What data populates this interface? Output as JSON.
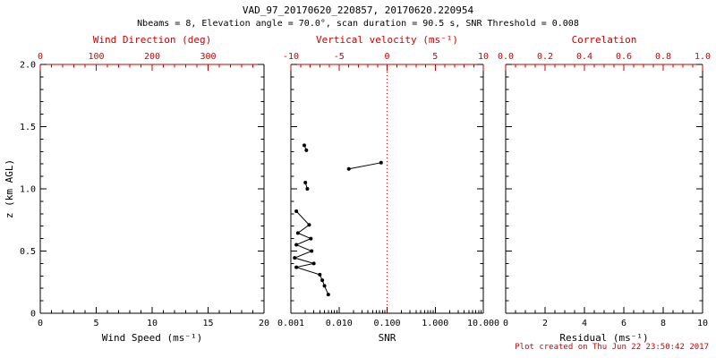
{
  "header": {
    "title": "VAD_97_20170620_220857, 20170620.220954",
    "subtitle": "Nbeams = 8, Elevation angle = 70.0°, scan duration = 90.5 s, SNR Threshold = 0.008"
  },
  "footer": {
    "created": "Plot created on Thu Jun 22 23:50:42 2017"
  },
  "colors": {
    "axis_black": "#000000",
    "accent_red": "#cc0000",
    "data_black": "#000000"
  },
  "chart_data": [
    {
      "type": "scatter",
      "panel": "wind-speed",
      "x_bottom": {
        "label": "Wind Speed (ms⁻¹)",
        "scale": "linear",
        "range": [
          0,
          20
        ],
        "minor_step": 1,
        "ticks": [
          [
            0,
            "0"
          ],
          [
            5,
            "5"
          ],
          [
            10,
            "10"
          ],
          [
            15,
            "15"
          ],
          [
            20,
            "20"
          ]
        ]
      },
      "x_top": {
        "label": "Wind Direction (deg)",
        "scale": "linear",
        "range": [
          0,
          400
        ],
        "minor_step": 20,
        "ticks": [
          [
            0,
            "0"
          ],
          [
            100,
            "100"
          ],
          [
            200,
            "200"
          ],
          [
            300,
            "300"
          ]
        ]
      },
      "y": {
        "label": "z (km AGL)",
        "range": [
          0,
          2
        ],
        "minor_step": 0.1,
        "show_labels": true,
        "ticks": [
          [
            0,
            "0"
          ],
          [
            0.5,
            "0.5"
          ],
          [
            1,
            "1.0"
          ],
          [
            1.5,
            "1.5"
          ],
          [
            2,
            "2.0"
          ]
        ]
      },
      "series": []
    },
    {
      "type": "scatter-line",
      "panel": "snr",
      "x_bottom": {
        "label": "SNR",
        "scale": "log",
        "range": [
          0.001,
          10
        ],
        "ticks": [
          [
            0.001,
            "0.001"
          ],
          [
            0.01,
            "0.010"
          ],
          [
            0.1,
            "0.100"
          ],
          [
            1,
            "1.000"
          ],
          [
            10,
            "10.000"
          ]
        ]
      },
      "x_top": {
        "label": "Vertical velocity (ms⁻¹)",
        "scale": "linear",
        "range": [
          -10,
          10
        ],
        "minor_step": 1,
        "ticks": [
          [
            -10,
            "-10"
          ],
          [
            -5,
            "-5"
          ],
          [
            0,
            "0"
          ],
          [
            5,
            "5"
          ],
          [
            10,
            "10"
          ]
        ]
      },
      "y": {
        "range": [
          0,
          2
        ],
        "minor_step": 0.1,
        "show_labels": false,
        "ticks": [
          [
            0,
            "0"
          ],
          [
            0.5,
            "0.5"
          ],
          [
            1,
            "1.0"
          ],
          [
            1.5,
            "1.5"
          ],
          [
            2,
            "2.0"
          ]
        ]
      },
      "reference_line_x": 0.1,
      "series": [
        {
          "name": "snr-profile",
          "marker": "circle",
          "segments": [
            [
              [
                0.0019,
                1.35
              ],
              [
                0.0021,
                1.31
              ]
            ],
            [
              [
                0.016,
                1.16
              ],
              [
                0.075,
                1.21
              ]
            ],
            [
              [
                0.002,
                1.05
              ],
              [
                0.0022,
                1.0
              ]
            ],
            [
              [
                0.0013,
                0.82
              ],
              [
                0.0024,
                0.71
              ],
              [
                0.0014,
                0.645
              ],
              [
                0.0026,
                0.6
              ],
              [
                0.0013,
                0.55
              ],
              [
                0.0027,
                0.5
              ],
              [
                0.0012,
                0.445
              ],
              [
                0.003,
                0.4
              ],
              [
                0.0013,
                0.37
              ],
              [
                0.004,
                0.31
              ],
              [
                0.0045,
                0.265
              ],
              [
                0.005,
                0.22
              ],
              [
                0.006,
                0.15
              ]
            ]
          ]
        }
      ]
    },
    {
      "type": "scatter",
      "panel": "residual",
      "x_bottom": {
        "label": "Residual (ms⁻¹)",
        "scale": "linear",
        "range": [
          0,
          10
        ],
        "minor_step": 0.5,
        "ticks": [
          [
            0,
            "0"
          ],
          [
            2,
            "2"
          ],
          [
            4,
            "4"
          ],
          [
            6,
            "6"
          ],
          [
            8,
            "8"
          ],
          [
            10,
            "10"
          ]
        ]
      },
      "x_top": {
        "label": "Correlation",
        "scale": "linear",
        "range": [
          0,
          1
        ],
        "minor_step": 0.05,
        "ticks": [
          [
            0,
            "0.0"
          ],
          [
            0.2,
            "0.2"
          ],
          [
            0.4,
            "0.4"
          ],
          [
            0.6,
            "0.6"
          ],
          [
            0.8,
            "0.8"
          ],
          [
            1,
            "1.0"
          ]
        ]
      },
      "y": {
        "range": [
          0,
          2
        ],
        "minor_step": 0.1,
        "show_labels": false,
        "ticks": [
          [
            0,
            "0"
          ],
          [
            0.5,
            "0.5"
          ],
          [
            1,
            "1.0"
          ],
          [
            1.5,
            "1.5"
          ],
          [
            2,
            "2.0"
          ]
        ]
      },
      "series": []
    }
  ]
}
